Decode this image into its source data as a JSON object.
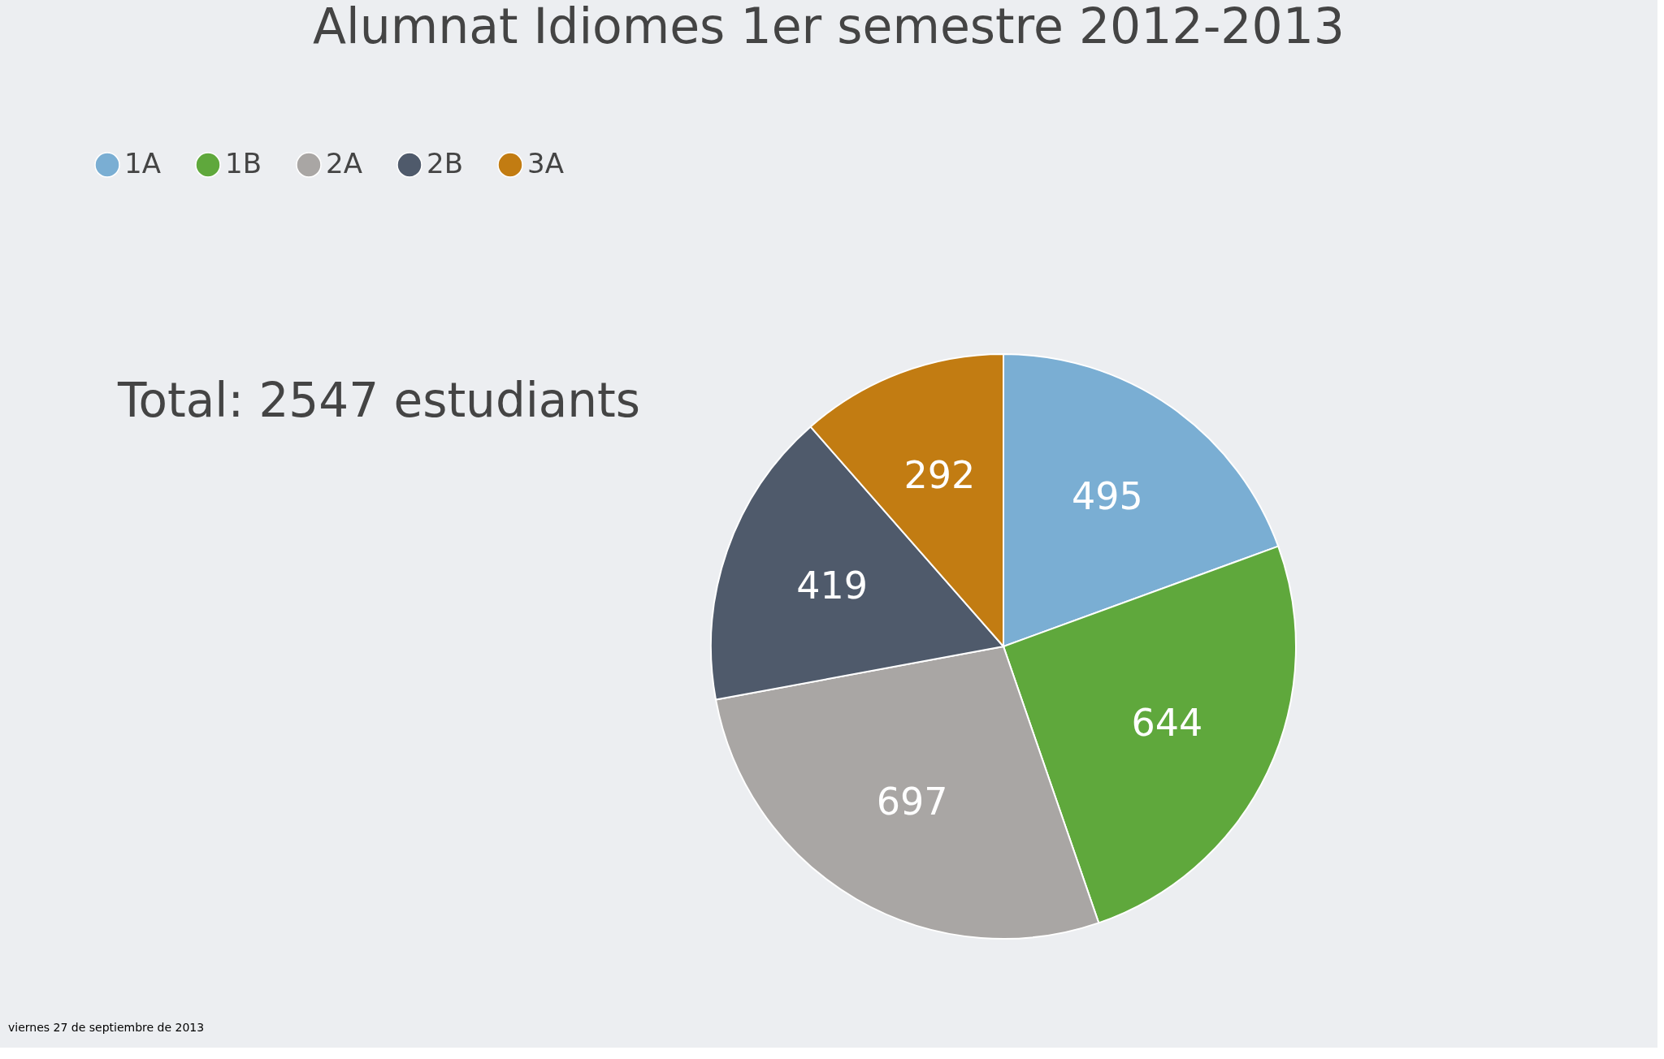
{
  "chart_data": {
    "type": "pie",
    "title": "Alumnat Idiomes 1er  semestre 2012-2013",
    "categories": [
      "1A",
      "1B",
      "2A",
      "2B",
      "3A"
    ],
    "values": [
      495,
      644,
      697,
      419,
      292
    ],
    "colors": [
      "#7aaed3",
      "#5fa83c",
      "#a9a6a4",
      "#4f5a6b",
      "#c27c12"
    ],
    "data_labels": true,
    "legend": "top left",
    "annotations": [
      "Total: 2547 estudiants",
      "viernes 27 de septiembre de 2013"
    ]
  }
}
